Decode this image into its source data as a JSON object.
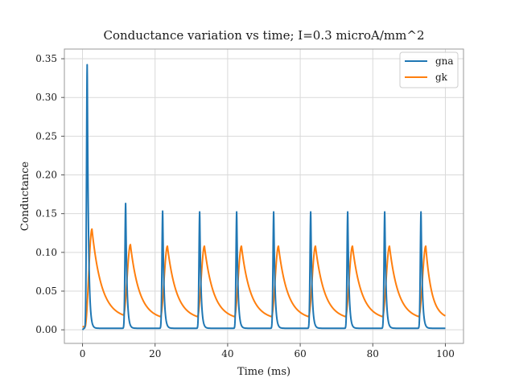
{
  "chart_data": {
    "type": "line",
    "title": "Conductance variation vs time; I=0.3 microA/mm^2",
    "xlabel": "Time (ms)",
    "ylabel": "Conductance",
    "xlim": [
      -5,
      105
    ],
    "ylim": [
      -0.0175,
      0.3625
    ],
    "xticks": [
      0,
      20,
      40,
      60,
      80,
      100
    ],
    "xtick_labels": [
      "0",
      "20",
      "40",
      "60",
      "80",
      "100"
    ],
    "yticks": [
      0.0,
      0.05,
      0.1,
      0.15,
      0.2,
      0.25,
      0.3,
      0.35
    ],
    "ytick_labels": [
      "0.00",
      "0.05",
      "0.10",
      "0.15",
      "0.20",
      "0.25",
      "0.30",
      "0.35"
    ],
    "grid": true,
    "legend": "top-right",
    "spike_times_ms": [
      1.3,
      11.9,
      22.1,
      32.3,
      42.5,
      52.7,
      62.9,
      73.1,
      83.3,
      93.3
    ],
    "series": [
      {
        "name": "gna",
        "color": "#1f77b4",
        "baseline": 0.002,
        "peaks": [
          0.344,
          0.164,
          0.154,
          0.153,
          0.153,
          0.153,
          0.153,
          0.153,
          0.153,
          0.153
        ],
        "t_end": 100
      },
      {
        "name": "gk",
        "color": "#ff7f0e",
        "start_value": 0.004,
        "peaks": [
          0.13,
          0.11,
          0.108,
          0.108,
          0.108,
          0.108,
          0.108,
          0.108,
          0.108,
          0.108
        ],
        "troughs": [
          0.019,
          0.017,
          0.017,
          0.017,
          0.017,
          0.017,
          0.017,
          0.017,
          0.017,
          0.018
        ],
        "t_end": 100
      }
    ]
  }
}
